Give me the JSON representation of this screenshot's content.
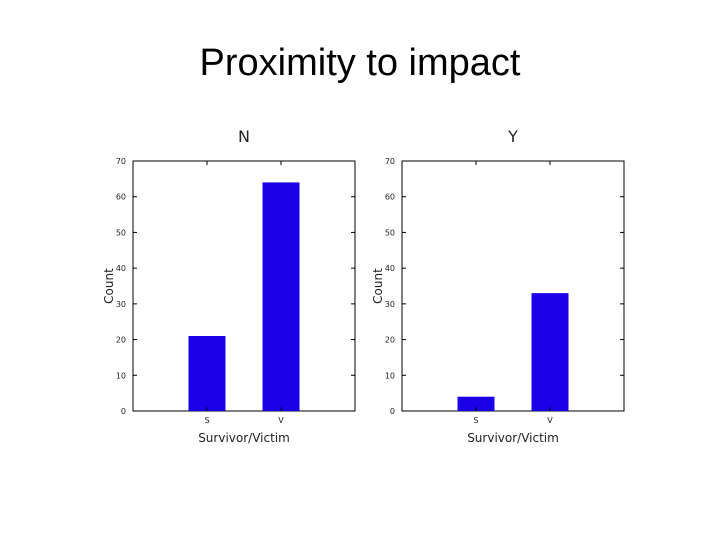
{
  "slide": {
    "title": "Proximity to impact"
  },
  "chart_data": [
    {
      "type": "bar",
      "title": "N",
      "categories": [
        "S",
        "V"
      ],
      "values": [
        21,
        64
      ],
      "xlabel": "Survivor/Victim",
      "ylabel": "Count",
      "ylim": [
        0,
        70
      ],
      "yticks": [
        0,
        10,
        20,
        30,
        40,
        50,
        60,
        70
      ],
      "grid": false,
      "bar_color": "#1a00e6"
    },
    {
      "type": "bar",
      "title": "Y",
      "categories": [
        "S",
        "V"
      ],
      "values": [
        4,
        33
      ],
      "xlabel": "Survivor/Victim",
      "ylabel": "Count",
      "ylim": [
        0,
        70
      ],
      "yticks": [
        0,
        10,
        20,
        30,
        40,
        50,
        60,
        70
      ],
      "grid": false,
      "bar_color": "#1a00e6"
    }
  ]
}
